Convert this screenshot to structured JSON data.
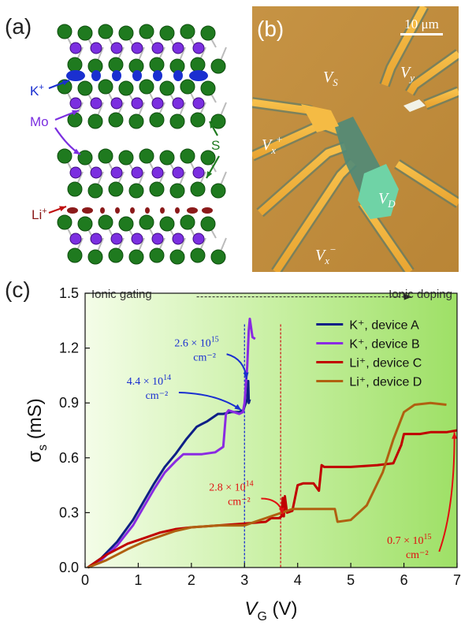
{
  "panels": {
    "a": {
      "label": "(a)",
      "k_label": "K",
      "k_sup": "+",
      "mo_label": "Mo",
      "s_label": "S",
      "li_label": "Li",
      "li_sup": "+"
    },
    "b": {
      "label": "(b)",
      "scale": "10 μm",
      "vs": "V",
      "vs_sub": "S",
      "vy": "V",
      "vy_sub": "y",
      "vxp": "V",
      "vxp_sub": "x",
      "vxp_sup": "+",
      "vd": "V",
      "vd_sub": "D",
      "vxm": "V",
      "vxm_sub": "x",
      "vxm_sup": "−"
    },
    "c": {
      "label": "(c)"
    }
  },
  "colors": {
    "potassium": "#1a2fd0",
    "molybdenum": "#7b2fe0",
    "sulfur": "#1f7a1f",
    "lithium": "#8b1a1a",
    "gold": "#f0b23c",
    "substrate": "#c09040"
  },
  "chart_data": {
    "type": "line",
    "xlabel": "V",
    "xlabel_sub": "G",
    "xlabel_unit": " (V)",
    "ylabel": "σ",
    "ylabel_sub": "s",
    "ylabel_unit": " (mS)",
    "xlim": [
      0,
      7
    ],
    "ylim": [
      0,
      1.5
    ],
    "xticks": [
      "0",
      "1",
      "2",
      "3",
      "4",
      "5",
      "6",
      "7"
    ],
    "yticks": [
      "0.0",
      "0.3",
      "0.6",
      "0.9",
      "1.2",
      "1.5"
    ],
    "grid": false,
    "legend_position": "top-right",
    "header_left": "Ionic gating",
    "header_right": "Ionic doping",
    "series": [
      {
        "name": "K⁺, device A",
        "color": "#0e1f86",
        "points": [
          [
            0.05,
            0
          ],
          [
            0.3,
            0.05
          ],
          [
            0.6,
            0.14
          ],
          [
            0.9,
            0.26
          ],
          [
            1.1,
            0.36
          ],
          [
            1.3,
            0.46
          ],
          [
            1.5,
            0.55
          ],
          [
            1.7,
            0.62
          ],
          [
            1.9,
            0.7
          ],
          [
            2.1,
            0.77
          ],
          [
            2.3,
            0.8
          ],
          [
            2.5,
            0.84
          ],
          [
            2.6,
            0.84
          ],
          [
            2.75,
            0.85
          ],
          [
            2.9,
            0.85
          ],
          [
            2.98,
            0.86
          ],
          [
            3.0,
            0.88
          ],
          [
            3.05,
            0.92
          ],
          [
            3.07,
            1.02
          ],
          [
            3.08,
            0.9
          ],
          [
            3.1,
            0.92
          ]
        ]
      },
      {
        "name": "K⁺, device B",
        "color": "#8a2be2",
        "points": [
          [
            0.05,
            0
          ],
          [
            0.3,
            0.04
          ],
          [
            0.6,
            0.12
          ],
          [
            0.9,
            0.23
          ],
          [
            1.1,
            0.33
          ],
          [
            1.3,
            0.43
          ],
          [
            1.5,
            0.52
          ],
          [
            1.7,
            0.58
          ],
          [
            1.85,
            0.62
          ],
          [
            2.2,
            0.62
          ],
          [
            2.45,
            0.63
          ],
          [
            2.6,
            0.66
          ],
          [
            2.65,
            0.84
          ],
          [
            2.7,
            0.86
          ],
          [
            2.9,
            0.84
          ],
          [
            2.97,
            0.85
          ],
          [
            3.0,
            0.9
          ],
          [
            3.05,
            1.1
          ],
          [
            3.08,
            1.3
          ],
          [
            3.1,
            1.36
          ],
          [
            3.15,
            1.26
          ],
          [
            3.2,
            1.25
          ]
        ]
      },
      {
        "name": "Li⁺, device C",
        "color": "#c00000",
        "points": [
          [
            0.05,
            0
          ],
          [
            0.4,
            0.07
          ],
          [
            0.8,
            0.13
          ],
          [
            1.1,
            0.16
          ],
          [
            1.4,
            0.19
          ],
          [
            1.7,
            0.21
          ],
          [
            2.0,
            0.22
          ],
          [
            2.5,
            0.23
          ],
          [
            3.0,
            0.24
          ],
          [
            3.4,
            0.25
          ],
          [
            3.5,
            0.27
          ],
          [
            3.65,
            0.27
          ],
          [
            3.7,
            0.28
          ],
          [
            3.72,
            0.38
          ],
          [
            3.74,
            0.28
          ],
          [
            3.76,
            0.39
          ],
          [
            3.8,
            0.3
          ],
          [
            3.9,
            0.31
          ],
          [
            4.0,
            0.45
          ],
          [
            4.1,
            0.46
          ],
          [
            4.3,
            0.46
          ],
          [
            4.4,
            0.42
          ],
          [
            4.45,
            0.56
          ],
          [
            4.5,
            0.55
          ],
          [
            5.0,
            0.55
          ],
          [
            5.5,
            0.56
          ],
          [
            5.8,
            0.57
          ],
          [
            5.95,
            0.67
          ],
          [
            6.0,
            0.73
          ],
          [
            6.3,
            0.73
          ],
          [
            6.5,
            0.74
          ],
          [
            6.8,
            0.74
          ],
          [
            7.0,
            0.75
          ]
        ]
      },
      {
        "name": "Li⁺, device D",
        "color": "#b06010",
        "points": [
          [
            0.05,
            0
          ],
          [
            0.4,
            0.04
          ],
          [
            0.8,
            0.1
          ],
          [
            1.1,
            0.14
          ],
          [
            1.4,
            0.17
          ],
          [
            1.7,
            0.2
          ],
          [
            2.0,
            0.22
          ],
          [
            2.5,
            0.23
          ],
          [
            3.0,
            0.23
          ],
          [
            3.5,
            0.28
          ],
          [
            3.9,
            0.32
          ],
          [
            4.3,
            0.32
          ],
          [
            4.7,
            0.32
          ],
          [
            4.75,
            0.25
          ],
          [
            5.0,
            0.26
          ],
          [
            5.3,
            0.34
          ],
          [
            5.6,
            0.52
          ],
          [
            5.8,
            0.7
          ],
          [
            6.0,
            0.85
          ],
          [
            6.2,
            0.89
          ],
          [
            6.5,
            0.9
          ],
          [
            6.8,
            0.89
          ]
        ]
      }
    ],
    "vlines": [
      {
        "x": 3.0,
        "color": "#1a2fd0"
      },
      {
        "x": 3.68,
        "color": "#d02020"
      }
    ],
    "annotations": [
      {
        "text": "2.6 × 10",
        "exp": "15",
        "unit": "cm⁻²",
        "color": "#1a2fd0",
        "tx": 2.1,
        "ty": 1.21,
        "ax": 3.04,
        "ay": 1.03
      },
      {
        "text": "4.4 × 10",
        "exp": "14",
        "unit": "cm⁻²",
        "color": "#1a2fd0",
        "tx": 1.2,
        "ty": 1.0,
        "ax": 2.94,
        "ay": 0.86
      },
      {
        "text": "2.8 × 10",
        "exp": "14",
        "unit": "cm⁻²",
        "color": "#e01010",
        "tx": 2.75,
        "ty": 0.42,
        "ax": 3.72,
        "ay": 0.29
      },
      {
        "text": "0.7 × 10",
        "exp": "15",
        "unit": "cm⁻²",
        "color": "#e01010",
        "tx": 6.1,
        "ty": 0.13,
        "ax": 6.95,
        "ay": 0.74
      }
    ]
  }
}
